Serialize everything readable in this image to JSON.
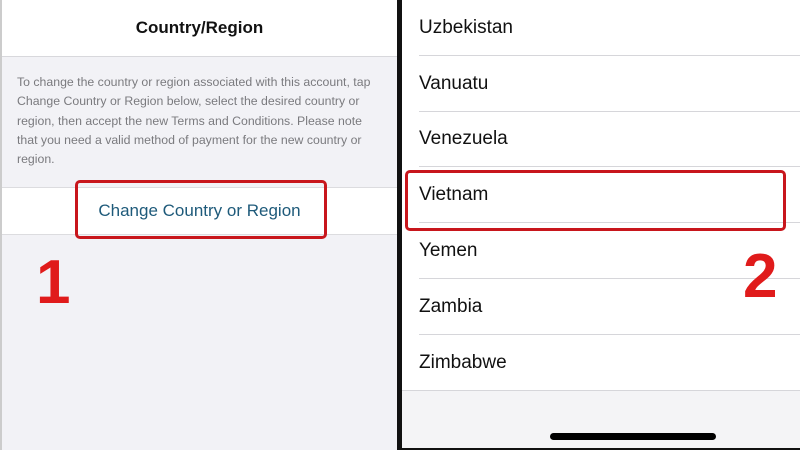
{
  "left": {
    "title": "Country/Region",
    "description": "To change the country or region associated with this account, tap Change Country or Region below, select the desired country or region, then accept the new Terms and Conditions. Please note that you need a valid method of payment for the new country or region.",
    "change_button": "Change Country or Region",
    "step": "1"
  },
  "right": {
    "countries": [
      "Uzbekistan",
      "Vanuatu",
      "Venezuela",
      "Vietnam",
      "Yemen",
      "Zambia",
      "Zimbabwe"
    ],
    "selected": "Vietnam",
    "step": "2"
  },
  "colors": {
    "highlight": "#c8161c",
    "step_number": "#e01b1b",
    "link": "#1e5a7a"
  }
}
